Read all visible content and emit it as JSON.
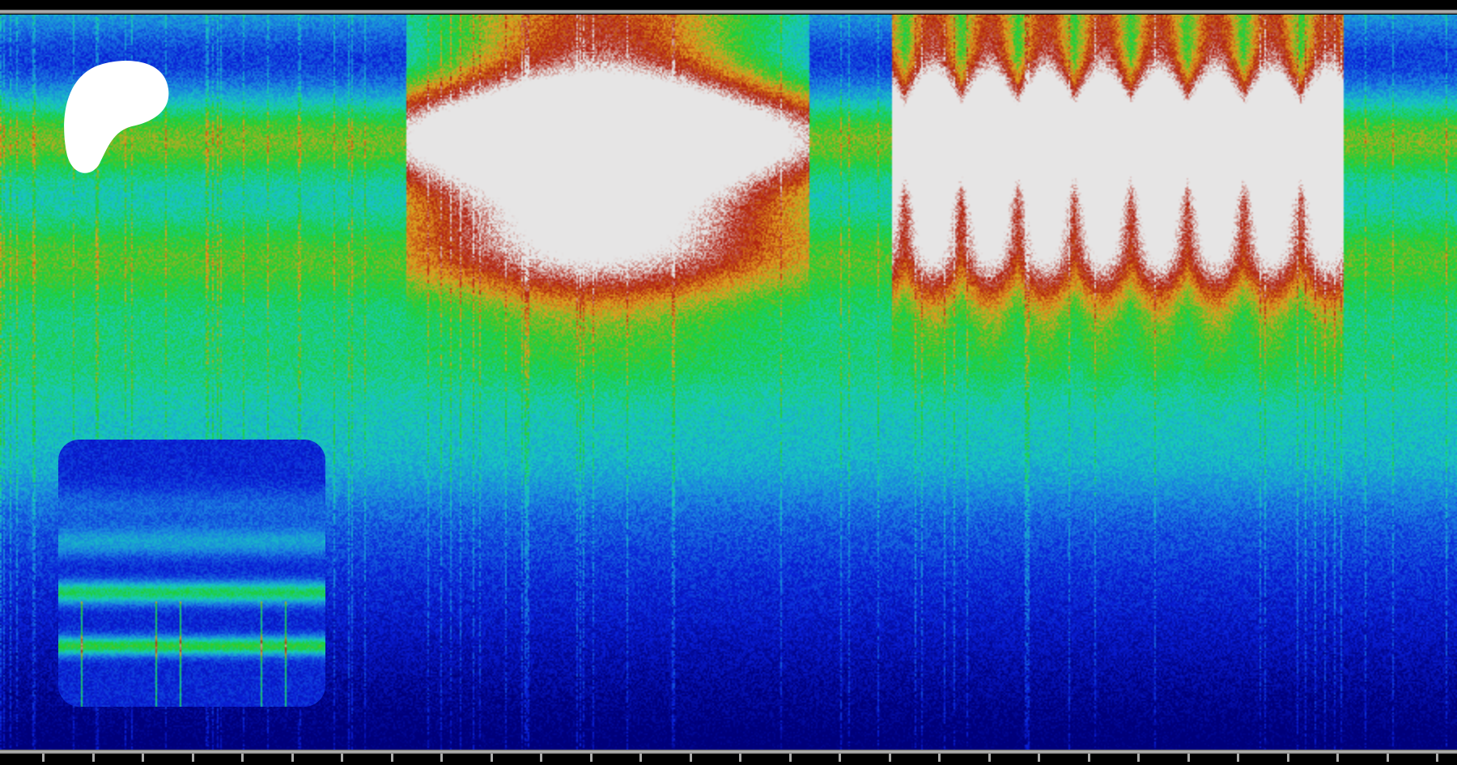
{
  "image": {
    "kind": "spectrogram",
    "colormap": [
      "#00007a",
      "#0a1fd6",
      "#1a7fe0",
      "#18c8c0",
      "#1ed030",
      "#e0a020",
      "#b02010",
      "#e6e6e6"
    ],
    "frame_color": "#000000",
    "rule_color": "#bbbbbb",
    "tick_count": 15
  },
  "logo": {
    "icon": "patreon-style-blob-logo-icon",
    "color": "#ffffff"
  },
  "inset": {
    "kind": "spectrogram-thumbnail"
  }
}
